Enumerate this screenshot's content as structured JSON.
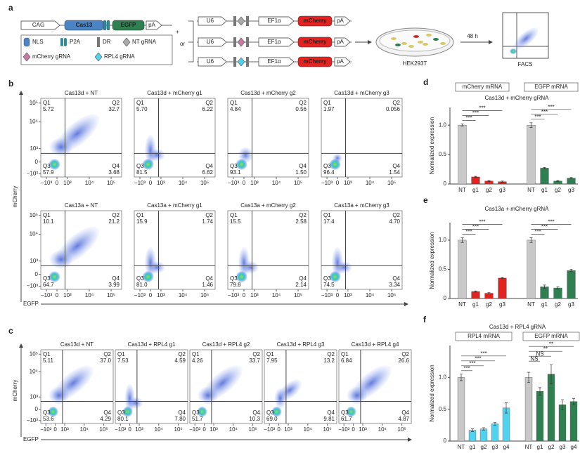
{
  "panel_a": {
    "label": "a",
    "cas_construct": {
      "promoter": "CAG",
      "gene": "Cas13",
      "tag": "EGFP",
      "polya": "pA"
    },
    "plus": "+",
    "or": "or",
    "guide_constructs": [
      {
        "promoter": "U6",
        "second_promoter": "EF1α",
        "reporter": "mCherry",
        "polya": "pA"
      },
      {
        "promoter": "U6",
        "second_promoter": "EF1α",
        "reporter": "mCherry",
        "polya": "pA"
      },
      {
        "promoter": "U6",
        "second_promoter": "EF1α",
        "reporter": "mCherry",
        "polya": "pA"
      }
    ],
    "legend": [
      "NLS",
      "P2A",
      "DR",
      "NT gRNA",
      "mCherry gRNA",
      "RPL4 gRNA"
    ],
    "cells": "HEK293T",
    "time": "48 h",
    "readout": "FACS"
  },
  "flow_axes": {
    "quadrant_names": [
      "Q1",
      "Q2",
      "Q3",
      "Q4"
    ],
    "y_ticks": [
      "10⁵",
      "10⁴",
      "10³",
      "0",
      "−10³"
    ],
    "x_ticks": [
      "−10³",
      "0",
      "10³",
      "10⁴",
      "10⁵"
    ]
  },
  "panel_b": {
    "label": "b",
    "y_label": "mCherry",
    "x_label": "EGFP",
    "plots": [
      {
        "title": "Cas13d + NT",
        "quadrants": [
          "5.72",
          "32.7",
          "57.9",
          "3.68"
        ]
      },
      {
        "title": "Cas13d + mCherry g1",
        "quadrants": [
          "5.70",
          "6.22",
          "81.5",
          "6.62"
        ]
      },
      {
        "title": "Cas13d + mCherry g2",
        "quadrants": [
          "4.84",
          "0.56",
          "93.1",
          "1.50"
        ]
      },
      {
        "title": "Cas13d + mCherry g3",
        "quadrants": [
          "1.97",
          "0.056",
          "96.4",
          "1.54"
        ]
      },
      {
        "title": "Cas13a + NT",
        "quadrants": [
          "10.1",
          "21.2",
          "64.7",
          "3.99"
        ]
      },
      {
        "title": "Cas13a + mCherry g1",
        "quadrants": [
          "15.9",
          "1.74",
          "81.0",
          "1.46"
        ]
      },
      {
        "title": "Cas13a + mCherry g2",
        "quadrants": [
          "15.5",
          "2.58",
          "79.8",
          "2.14"
        ]
      },
      {
        "title": "Cas13a + mCherry g3",
        "quadrants": [
          "17.4",
          "4.70",
          "74.5",
          "3.34"
        ]
      }
    ]
  },
  "panel_c": {
    "label": "c",
    "y_label": "mCherry",
    "x_label": "EGFP",
    "plots": [
      {
        "title": "Cas13d + NT",
        "quadrants": [
          "5.11",
          "37.0",
          "53.6",
          "4.29"
        ]
      },
      {
        "title": "Cas13d + RPL4 g1",
        "quadrants": [
          "7.53",
          "4.59",
          "80.1",
          "7.80"
        ]
      },
      {
        "title": "Cas13d + RPL4 g2",
        "quadrants": [
          "4.26",
          "33.7",
          "51.7",
          "10.3"
        ]
      },
      {
        "title": "Cas13d + RPL4 g3",
        "quadrants": [
          "7.95",
          "13.2",
          "69.0",
          "9.81"
        ]
      },
      {
        "title": "Cas13d + RPL4 g4",
        "quadrants": [
          "6.84",
          "26.6",
          "61.7",
          "4.87"
        ]
      }
    ]
  },
  "chart_data": [
    {
      "type": "bar",
      "label": "d",
      "title": "Cas13d + mCherry gRNA",
      "ylabel": "Normalized expression",
      "categories": [
        "NT",
        "g1",
        "g2",
        "g3"
      ],
      "ylim": [
        0,
        1.3
      ],
      "yticks": [
        0,
        0.5,
        {
          "value": 1,
          "label": "1.0"
        }
      ],
      "series": [
        {
          "name": "mCherry mRNA",
          "colors": [
            "#c8c8c8",
            "#e3231f",
            "#e3231f",
            "#e3231f"
          ],
          "values": [
            1.0,
            0.12,
            0.05,
            0.04
          ],
          "errors": [
            0.02,
            0.01,
            0.01,
            0.01
          ],
          "significance": [
            "***",
            "***",
            "***"
          ]
        },
        {
          "name": "EGFP mRNA",
          "colors": [
            "#c8c8c8",
            "#2e8050",
            "#2e8050",
            "#2e8050"
          ],
          "values": [
            1.0,
            0.27,
            0.05,
            0.1
          ],
          "errors": [
            0.04,
            0.01,
            0.01,
            0.01
          ],
          "significance": [
            "***",
            "***",
            "***"
          ]
        }
      ]
    },
    {
      "type": "bar",
      "label": "e",
      "title": "Cas13a + mCherry gRNA",
      "ylabel": "Normalized expression",
      "categories": [
        "NT",
        "g1",
        "g2",
        "g3"
      ],
      "ylim": [
        0,
        1.3
      ],
      "yticks": [
        0,
        0.5,
        {
          "value": 1,
          "label": "1.0"
        }
      ],
      "series": [
        {
          "colors": [
            "#c8c8c8",
            "#e3231f",
            "#e3231f",
            "#e3231f"
          ],
          "values": [
            1.0,
            0.12,
            0.09,
            0.35
          ],
          "errors": [
            0.04,
            0.01,
            0.01,
            0.01
          ],
          "significance": [
            "***",
            "***",
            "***"
          ]
        },
        {
          "colors": [
            "#c8c8c8",
            "#2e8050",
            "#2e8050",
            "#2e8050"
          ],
          "values": [
            1.0,
            0.2,
            0.18,
            0.48
          ],
          "errors": [
            0.04,
            0.03,
            0.02,
            0.02
          ],
          "significance": [
            "***",
            "***",
            "***"
          ]
        }
      ]
    },
    {
      "type": "bar",
      "label": "f",
      "title": "Cas13d + RPL4 gRNA",
      "ylabel": "Normalized expression",
      "categories": [
        "NT",
        "g1",
        "g2",
        "g3",
        "g4"
      ],
      "ylim": [
        0,
        1.5
      ],
      "yticks": [
        0,
        0.5,
        {
          "value": 1,
          "label": "1.0"
        }
      ],
      "series": [
        {
          "name": "RPL4 mRNA",
          "colors": [
            "#c8c8c8",
            "#4fd3ee",
            "#4fd3ee",
            "#4fd3ee",
            "#4fd3ee"
          ],
          "values": [
            1.0,
            0.17,
            0.19,
            0.27,
            0.52
          ],
          "errors": [
            0.05,
            0.02,
            0.02,
            0.02,
            0.08
          ],
          "significance": [
            "***",
            "***",
            "***",
            "***"
          ]
        },
        {
          "name": "EGFP mRNA",
          "colors": [
            "#c8c8c8",
            "#2e8050",
            "#2e8050",
            "#2e8050",
            "#2e8050"
          ],
          "values": [
            1.0,
            0.78,
            1.05,
            0.57,
            0.62
          ],
          "errors": [
            0.08,
            0.06,
            0.15,
            0.08,
            0.05
          ],
          "significance": [
            "NS",
            "NS",
            "**",
            "**"
          ]
        }
      ]
    }
  ]
}
